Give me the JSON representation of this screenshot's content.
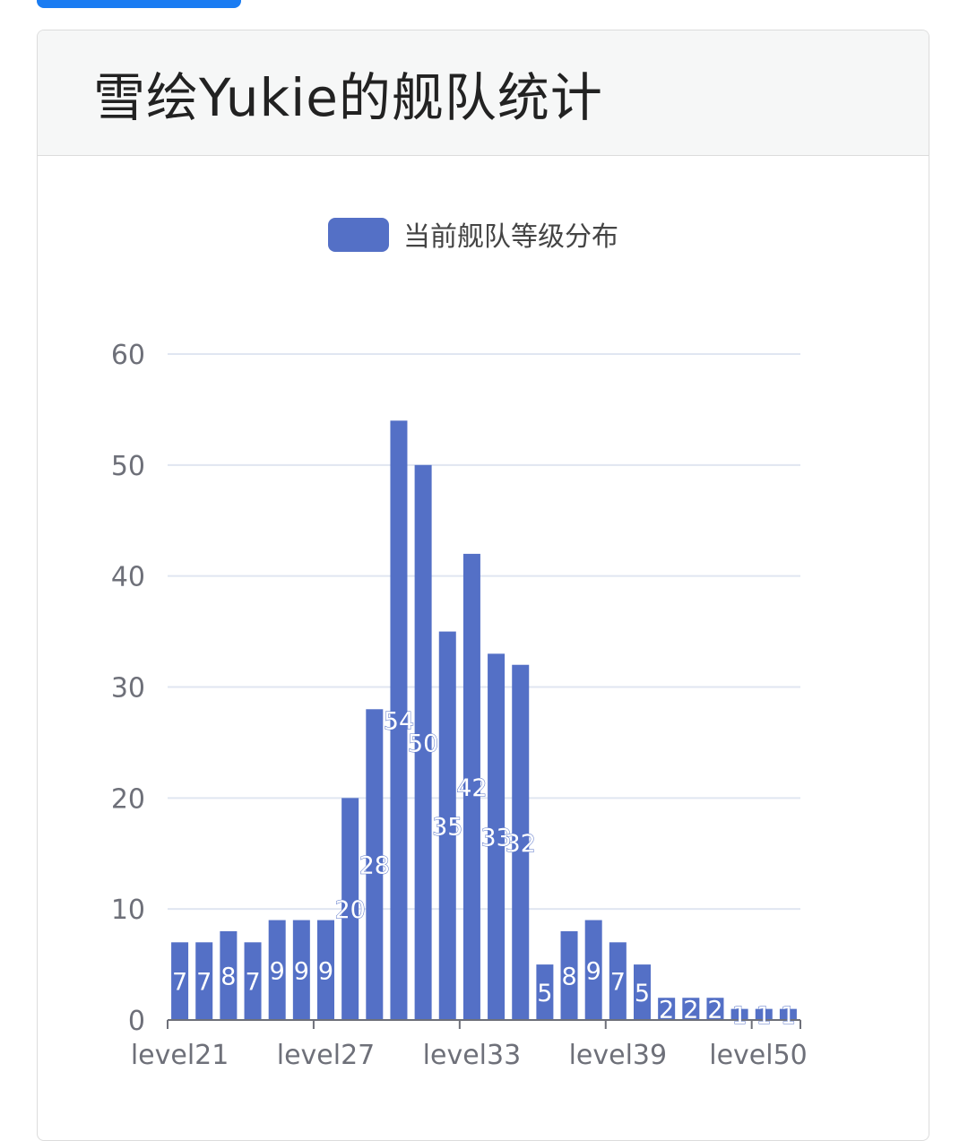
{
  "header": {
    "title": "雪绘Yukie的舰队统计"
  },
  "colors": {
    "accent_button": "#1a7cf2",
    "bar": "#5470c6",
    "grid": "#e0e6f1",
    "axis": "#6e7079"
  },
  "chart_data": {
    "type": "bar",
    "legend": [
      "当前舰队等级分布"
    ],
    "legend_position": "top-center",
    "grid": true,
    "ylim": [
      0,
      60
    ],
    "y_ticks": [
      0,
      10,
      20,
      30,
      40,
      50,
      60
    ],
    "x_tick_labels": [
      "level21",
      "level27",
      "level33",
      "level39",
      "level50"
    ],
    "series": [
      {
        "name": "当前舰队等级分布",
        "values": [
          7,
          7,
          8,
          7,
          9,
          9,
          9,
          20,
          28,
          54,
          50,
          35,
          42,
          33,
          32,
          5,
          8,
          9,
          7,
          5,
          2,
          2,
          2,
          1,
          1,
          1
        ]
      }
    ]
  }
}
